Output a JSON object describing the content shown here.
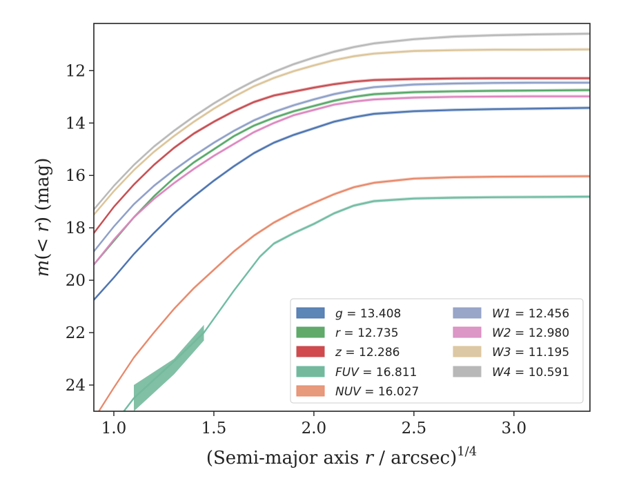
{
  "chart_data": {
    "type": "line",
    "xlabel": "(Semi-major axis r / arcsec)",
    "xlabel_parts": {
      "prefix": "(Semi-major axis ",
      "var": "r",
      "suffix": " / arcsec)",
      "sup": "1/4"
    },
    "ylabel_parts": {
      "m": "m",
      "open": "(",
      "lt": "< ",
      "r": "r",
      "close": ") (mag)"
    },
    "xlim": [
      0.9,
      3.38
    ],
    "ylim": [
      25.0,
      10.2
    ],
    "y_inverted": true,
    "x_ticks": [
      1.0,
      1.5,
      2.0,
      2.5,
      3.0
    ],
    "x_tick_labels": [
      "1.0",
      "1.5",
      "2.0",
      "2.5",
      "3.0"
    ],
    "y_ticks": [
      12,
      14,
      16,
      18,
      20,
      22,
      24
    ],
    "y_tick_labels": [
      "12",
      "14",
      "16",
      "18",
      "20",
      "22",
      "24"
    ],
    "grid": false,
    "legend_position": "lower-right",
    "series": [
      {
        "name": "g",
        "value": "13.408",
        "color": "#4c72b0",
        "fill": "#5b86b5",
        "x": [
          0.9,
          1.0,
          1.1,
          1.2,
          1.3,
          1.4,
          1.5,
          1.6,
          1.7,
          1.8,
          1.9,
          2.0,
          2.1,
          2.2,
          2.3,
          2.5,
          2.7,
          2.9,
          3.1,
          3.38
        ],
        "y": [
          20.75,
          19.9,
          19.0,
          18.2,
          17.45,
          16.8,
          16.2,
          15.65,
          15.15,
          14.75,
          14.45,
          14.2,
          13.95,
          13.78,
          13.65,
          13.55,
          13.5,
          13.47,
          13.45,
          13.42
        ]
      },
      {
        "name": "r",
        "value": "12.735",
        "color": "#55a868",
        "fill": "#62aa6a",
        "x": [
          0.9,
          1.0,
          1.1,
          1.2,
          1.3,
          1.4,
          1.5,
          1.6,
          1.7,
          1.8,
          1.9,
          2.0,
          2.1,
          2.2,
          2.3,
          2.5,
          2.7,
          2.9,
          3.1,
          3.38
        ],
        "y": [
          19.4,
          18.5,
          17.6,
          16.8,
          16.1,
          15.5,
          15.0,
          14.5,
          14.1,
          13.8,
          13.55,
          13.35,
          13.15,
          13.0,
          12.9,
          12.82,
          12.79,
          12.77,
          12.76,
          12.74
        ]
      },
      {
        "name": "z",
        "value": "12.286",
        "color": "#c44e52",
        "fill": "#d04a4e",
        "x": [
          0.9,
          1.0,
          1.1,
          1.2,
          1.3,
          1.4,
          1.5,
          1.6,
          1.7,
          1.8,
          1.9,
          2.0,
          2.1,
          2.2,
          2.3,
          2.5,
          2.7,
          2.9,
          3.1,
          3.38
        ],
        "y": [
          18.2,
          17.2,
          16.35,
          15.6,
          14.95,
          14.4,
          13.95,
          13.55,
          13.2,
          12.95,
          12.8,
          12.65,
          12.52,
          12.42,
          12.36,
          12.32,
          12.3,
          12.29,
          12.29,
          12.29
        ]
      },
      {
        "name": "FUV",
        "value": "16.811",
        "color": "#6fbca4",
        "fill": "#74b99c",
        "x": [
          0.9,
          1.1,
          1.2,
          1.3,
          1.45,
          1.6,
          1.73,
          1.8,
          1.9,
          2.0,
          2.1,
          2.2,
          2.3,
          2.5,
          2.7,
          2.9,
          3.18,
          3.38
        ],
        "y": [
          26.5,
          24.5,
          23.8,
          23.1,
          22.0,
          20.4,
          19.1,
          18.6,
          18.2,
          17.85,
          17.45,
          17.15,
          16.98,
          16.88,
          16.85,
          16.83,
          16.82,
          16.81
        ]
      },
      {
        "name": "NUV",
        "value": "16.027",
        "color": "#e8886a",
        "fill": "#e89a7c",
        "x": [
          0.9,
          1.0,
          1.1,
          1.2,
          1.3,
          1.4,
          1.5,
          1.6,
          1.7,
          1.8,
          1.9,
          2.0,
          2.1,
          2.2,
          2.3,
          2.5,
          2.7,
          2.9,
          3.1,
          3.38
        ],
        "y": [
          25.3,
          24.1,
          22.95,
          22.0,
          21.1,
          20.3,
          19.6,
          18.9,
          18.3,
          17.8,
          17.4,
          17.05,
          16.72,
          16.45,
          16.28,
          16.12,
          16.07,
          16.05,
          16.04,
          16.03
        ]
      },
      {
        "name": "W1",
        "value": "12.456",
        "color": "#8d9fc8",
        "fill": "#9aa6c8",
        "x": [
          0.9,
          1.0,
          1.1,
          1.2,
          1.3,
          1.4,
          1.5,
          1.6,
          1.7,
          1.8,
          1.9,
          2.0,
          2.1,
          2.2,
          2.3,
          2.5,
          2.7,
          2.9,
          3.1,
          3.38
        ],
        "y": [
          18.9,
          17.95,
          17.1,
          16.4,
          15.8,
          15.25,
          14.75,
          14.3,
          13.9,
          13.58,
          13.32,
          13.1,
          12.9,
          12.75,
          12.63,
          12.53,
          12.49,
          12.47,
          12.46,
          12.46
        ]
      },
      {
        "name": "W2",
        "value": "12.980",
        "color": "#dd84be",
        "fill": "#dc97c7",
        "x": [
          0.9,
          1.0,
          1.1,
          1.2,
          1.3,
          1.4,
          1.5,
          1.6,
          1.7,
          1.8,
          1.9,
          2.0,
          2.1,
          2.2,
          2.3,
          2.5,
          2.7,
          2.9,
          3.1,
          3.38
        ],
        "y": [
          19.4,
          18.45,
          17.6,
          16.9,
          16.3,
          15.75,
          15.25,
          14.8,
          14.35,
          14.0,
          13.7,
          13.5,
          13.3,
          13.18,
          13.1,
          13.03,
          13.0,
          12.99,
          12.98,
          12.98
        ]
      },
      {
        "name": "W3",
        "value": "11.195",
        "color": "#dcc497",
        "fill": "#dcc8a4",
        "x": [
          0.9,
          1.0,
          1.1,
          1.2,
          1.3,
          1.4,
          1.5,
          1.6,
          1.7,
          1.8,
          1.9,
          2.0,
          2.1,
          2.2,
          2.3,
          2.5,
          2.7,
          2.9,
          3.1,
          3.38
        ],
        "y": [
          17.5,
          16.6,
          15.8,
          15.1,
          14.5,
          13.95,
          13.45,
          13.0,
          12.6,
          12.28,
          12.02,
          11.8,
          11.6,
          11.45,
          11.35,
          11.25,
          11.22,
          11.2,
          11.2,
          11.19
        ]
      },
      {
        "name": "W4",
        "value": "10.591",
        "color": "#b8b8b8",
        "fill": "#b8b8b8",
        "x": [
          0.9,
          1.0,
          1.1,
          1.2,
          1.3,
          1.4,
          1.5,
          1.6,
          1.7,
          1.8,
          1.9,
          2.0,
          2.1,
          2.2,
          2.3,
          2.5,
          2.7,
          2.9,
          3.1,
          3.38
        ],
        "y": [
          17.3,
          16.4,
          15.6,
          14.9,
          14.3,
          13.75,
          13.25,
          12.8,
          12.4,
          12.05,
          11.75,
          11.5,
          11.28,
          11.1,
          10.96,
          10.8,
          10.7,
          10.65,
          10.62,
          10.59
        ]
      }
    ]
  }
}
